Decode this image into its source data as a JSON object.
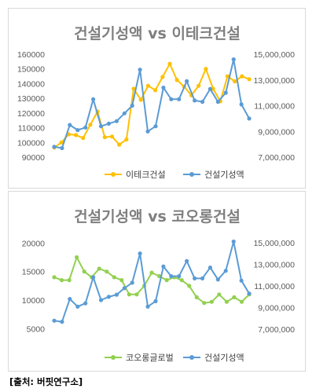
{
  "chart_data": [
    {
      "type": "line",
      "title": "건설기성액 vs 이테크건설",
      "y_left_ticks": [
        "90000",
        "100000",
        "110000",
        "120000",
        "130000",
        "140000",
        "150000",
        "160000"
      ],
      "y_left_range": [
        90000,
        160000
      ],
      "y_right_ticks": [
        "7,000,000",
        "9,000,000",
        "11,000,000",
        "13,000,000",
        "15,000,000"
      ],
      "y_right_range": [
        7000000,
        15000000
      ],
      "legend_position": "bottom",
      "series": [
        {
          "name": "이테크건설",
          "axis": "left",
          "color": "#ffc000",
          "values": [
            96500,
            100000,
            105500,
            105000,
            103000,
            112000,
            121000,
            103500,
            104000,
            98500,
            102000,
            136500,
            129000,
            138500,
            135500,
            144500,
            153500,
            142500,
            138000,
            132000,
            138500,
            150000,
            136500,
            128000,
            145000,
            141500,
            145000,
            143000
          ]
        },
        {
          "name": "건설기성액",
          "axis": "right",
          "color": "#5b9bd5",
          "values": [
            7800000,
            7700000,
            9500000,
            9100000,
            9300000,
            11500000,
            9400000,
            9600000,
            9800000,
            10400000,
            11000000,
            13800000,
            9000000,
            9400000,
            12400000,
            11500000,
            11500000,
            12900000,
            11400000,
            11300000,
            12300000,
            11300000,
            12000000,
            14600000,
            11100000,
            10000000
          ]
        }
      ]
    },
    {
      "type": "line",
      "title": "건설기성액 vs 코오롱건설",
      "y_left_ticks": [
        "5000",
        "10000",
        "15000",
        "20000"
      ],
      "y_left_range": [
        3000,
        21000
      ],
      "y_right_ticks": [
        "7,000,000",
        "9,000,000",
        "11,000,000",
        "13,000,000",
        "15,000,000"
      ],
      "y_right_range": [
        6000000,
        15500000
      ],
      "legend_position": "bottom",
      "series": [
        {
          "name": "코오롱글로벌",
          "axis": "left",
          "color": "#92d050",
          "values": [
            14000,
            13500,
            13500,
            17500,
            15000,
            14000,
            15500,
            15000,
            14000,
            13500,
            11000,
            11000,
            12500,
            14800,
            14200,
            13500,
            14000,
            13500,
            12500,
            10500,
            9500,
            9700,
            11000,
            9700,
            10500,
            9700,
            11000
          ]
        },
        {
          "name": "건설기성액",
          "axis": "right",
          "color": "#5b9bd5",
          "values": [
            7800000,
            7700000,
            9800000,
            9100000,
            9400000,
            11800000,
            9700000,
            10000000,
            10200000,
            10800000,
            11300000,
            14000000,
            9100000,
            9600000,
            12800000,
            11900000,
            11900000,
            13300000,
            11700000,
            11700000,
            12700000,
            11600000,
            12400000,
            15100000,
            11500000,
            10300000
          ]
        }
      ]
    }
  ],
  "source_text": "[출처: 버핏연구소]"
}
